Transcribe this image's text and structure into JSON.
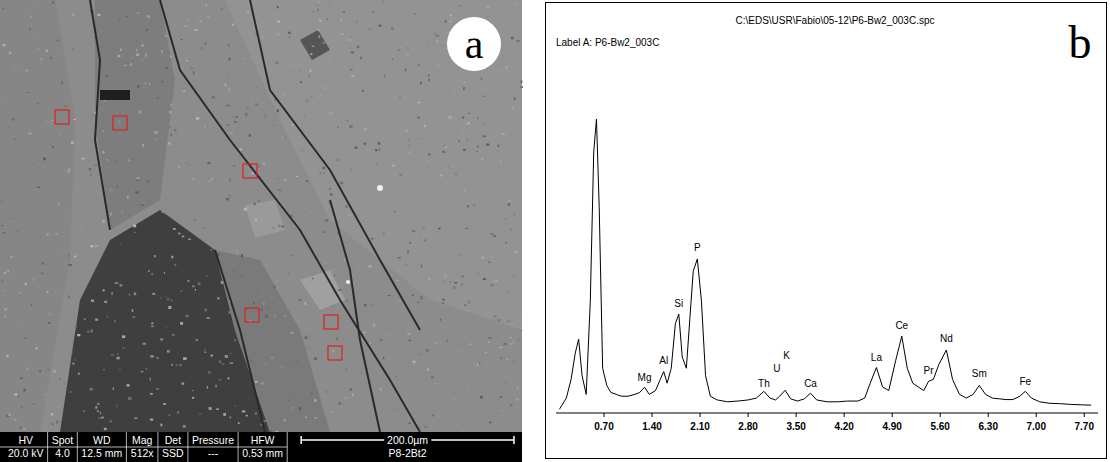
{
  "panel_a": {
    "letter": "a",
    "info_bar": {
      "headers": [
        "HV",
        "Spot",
        "WD",
        "Mag",
        "Det",
        "Pressure",
        "HFW"
      ],
      "values": [
        "20.0 kV",
        "4.0",
        "12.5 mm",
        "512x",
        "SSD",
        "---",
        "0.53 mm"
      ]
    },
    "scale_bar": "200.0µm",
    "sample": "P8-2Bt2"
  },
  "chart_data": {
    "type": "line",
    "letter": "b",
    "title": "C:\\EDS\\USR\\Fabio\\05-12\\P6-Bw2_003C.spc",
    "subtitle": "Label A: P6-Bw2_003C",
    "color": "#000000",
    "x": [
      0.05,
      0.15,
      0.22,
      0.28,
      0.33,
      0.38,
      0.44,
      0.5,
      0.55,
      0.59,
      0.63,
      0.68,
      0.74,
      0.8,
      0.88,
      0.95,
      1.05,
      1.15,
      1.22,
      1.29,
      1.36,
      1.45,
      1.52,
      1.57,
      1.62,
      1.68,
      1.74,
      1.79,
      1.84,
      1.9,
      1.95,
      2.0,
      2.06,
      2.12,
      2.18,
      2.25,
      2.35,
      2.5,
      2.65,
      2.8,
      2.92,
      3.03,
      3.12,
      3.2,
      3.26,
      3.34,
      3.42,
      3.52,
      3.62,
      3.71,
      3.8,
      3.95,
      4.1,
      4.25,
      4.4,
      4.5,
      4.58,
      4.67,
      4.76,
      4.85,
      4.95,
      5.04,
      5.12,
      5.2,
      5.28,
      5.36,
      5.43,
      5.5,
      5.58,
      5.69,
      5.78,
      5.88,
      5.98,
      6.08,
      6.17,
      6.26,
      6.36,
      6.46,
      6.56,
      6.66,
      6.76,
      6.84,
      6.93,
      7.05,
      7.2,
      7.35,
      7.5,
      7.65,
      7.8
    ],
    "values": [
      1,
      4,
      9,
      16,
      19.8,
      10,
      5,
      30,
      70,
      78.8,
      55,
      12,
      7.4,
      5.5,
      5,
      4.5,
      4.5,
      5,
      5.5,
      6.9,
      5,
      6,
      9,
      11.1,
      8,
      12,
      24,
      26.5,
      15,
      12,
      25,
      38,
      41.3,
      30,
      10,
      4.5,
      3.5,
      3,
      3.2,
      3.5,
      4,
      5.8,
      4,
      3.5,
      4.5,
      6.1,
      3.8,
      3.2,
      3.8,
      5.3,
      3.5,
      3,
      3,
      3.2,
      3.2,
      4,
      8,
      12.2,
      7,
      6,
      14,
      20.6,
      12,
      8,
      7,
      6,
      8.5,
      9,
      13,
      16.9,
      9,
      5,
      4,
      5,
      7.4,
      5,
      4,
      3.8,
      3.6,
      3.6,
      4.5,
      5.8,
      4,
      3,
      2.6,
      2.5,
      2.3,
      2.2,
      2.1
    ],
    "xlim": [
      0,
      7.9
    ],
    "ylim": [
      0,
      100
    ],
    "xticks": [
      {
        "value": 0.7,
        "label": "0.70"
      },
      {
        "value": 1.4,
        "label": "1.40"
      },
      {
        "value": 2.1,
        "label": "2.10"
      },
      {
        "value": 2.8,
        "label": "2.80"
      },
      {
        "value": 3.5,
        "label": "3.50"
      },
      {
        "value": 4.2,
        "label": "4.20"
      },
      {
        "value": 4.9,
        "label": "4.90"
      },
      {
        "value": 5.6,
        "label": "5.60"
      },
      {
        "value": 6.3,
        "label": "6.30"
      },
      {
        "value": 7.0,
        "label": "7.00"
      },
      {
        "value": 7.7,
        "label": "7.70"
      }
    ],
    "tick_labels": "x",
    "grid": false,
    "annotations": [
      {
        "text": "Mg",
        "x": 1.29,
        "y": 8
      },
      {
        "text": "Al",
        "x": 1.57,
        "y": 12.5
      },
      {
        "text": "Si",
        "x": 1.79,
        "y": 28
      },
      {
        "text": "P",
        "x": 2.06,
        "y": 43
      },
      {
        "text": "Th",
        "x": 3.03,
        "y": 6.5
      },
      {
        "text": "U",
        "x": 3.22,
        "y": 10.5
      },
      {
        "text": "K",
        "x": 3.36,
        "y": 14
      },
      {
        "text": "Ca",
        "x": 3.71,
        "y": 6.5
      },
      {
        "text": "La",
        "x": 4.67,
        "y": 13.5
      },
      {
        "text": "Ce",
        "x": 5.04,
        "y": 22
      },
      {
        "text": "Pr",
        "x": 5.43,
        "y": 10
      },
      {
        "text": "Nd",
        "x": 5.69,
        "y": 18.5
      },
      {
        "text": "Sm",
        "x": 6.17,
        "y": 9
      },
      {
        "text": "Fe",
        "x": 6.84,
        "y": 7
      }
    ]
  }
}
